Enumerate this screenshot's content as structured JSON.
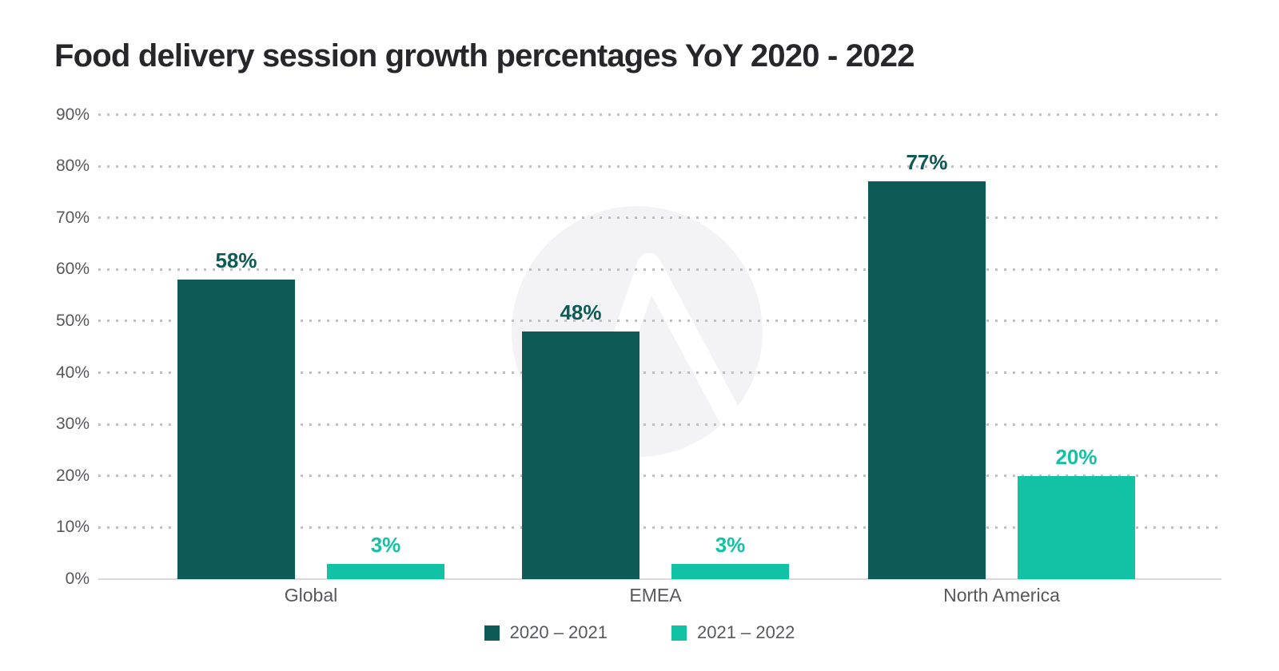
{
  "title": "Food delivery session growth percentages YoY 2020 - 2022",
  "chart_data": {
    "type": "bar",
    "title": "Food delivery session growth percentages YoY 2020 - 2022",
    "categories": [
      "Global",
      "EMEA",
      "North America"
    ],
    "series": [
      {
        "name": "2020 – 2021",
        "values": [
          58,
          48,
          77
        ],
        "labels": [
          "58%",
          "48%",
          "77%"
        ],
        "color": "#0d5a56"
      },
      {
        "name": "2021 – 2022",
        "values": [
          3,
          3,
          20
        ],
        "labels": [
          "3%",
          "3%",
          "20%"
        ],
        "color": "#12c2a5"
      }
    ],
    "ylim": [
      0,
      90
    ],
    "ytick_values": [
      0,
      10,
      20,
      30,
      40,
      50,
      60,
      70,
      80,
      90
    ],
    "ytick_labels": [
      "0%",
      "10%",
      "20%",
      "30%",
      "40%",
      "50%",
      "60%",
      "70%",
      "80%",
      "90%"
    ],
    "grid": "horizontal-dotted",
    "legend_position": "bottom-center"
  },
  "colors": {
    "background": "#ffffff",
    "title_text": "#26262b",
    "axis_text": "#57585c",
    "grid_dots": "#c0c0c4",
    "baseline": "#dadadd",
    "series1": "#0d5a56",
    "series2": "#12c2a5",
    "watermark_circle": "#f3f3f5",
    "watermark_glyph": "#ffffff"
  },
  "watermark": {
    "icon": "arrow-logo-watermark"
  }
}
